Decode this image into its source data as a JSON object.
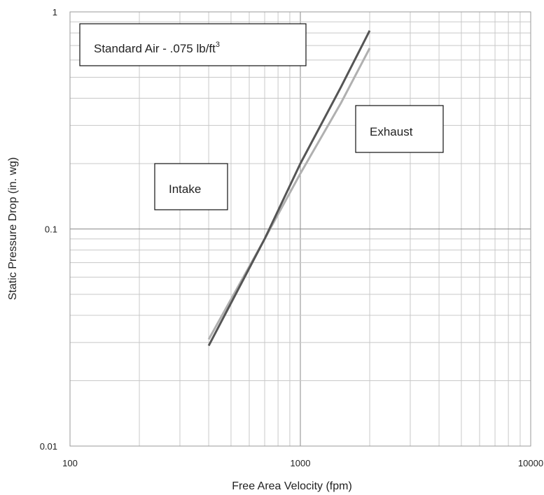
{
  "chart_data": {
    "type": "line",
    "xlabel": "Free Area Velocity (fpm)",
    "ylabel": "Static Pressure Drop (in. wg)",
    "x_scale": "log",
    "y_scale": "log",
    "xlim": [
      100,
      10000
    ],
    "ylim": [
      0.01,
      1
    ],
    "x_ticks": [
      "100",
      "1000",
      "10000"
    ],
    "y_ticks": [
      "0.01",
      "0.1",
      "1"
    ],
    "grid": true,
    "series": [
      {
        "x": [
          400,
          700,
          1000,
          1500,
          2000
        ],
        "y": [
          0.029,
          0.09,
          0.2,
          0.45,
          0.82
        ],
        "color": "#555555"
      },
      {
        "x": [
          400,
          700,
          1000,
          1500,
          2000
        ],
        "y": [
          0.031,
          0.09,
          0.18,
          0.38,
          0.68
        ],
        "color": "#b0b0b0"
      }
    ],
    "annotations": [
      {
        "key": "standard_air",
        "text": "Standard Air - .075 lb/ft",
        "superscript": "3"
      },
      {
        "key": "exhaust",
        "text": "Exhaust"
      },
      {
        "key": "intake",
        "text": "Intake"
      }
    ]
  }
}
